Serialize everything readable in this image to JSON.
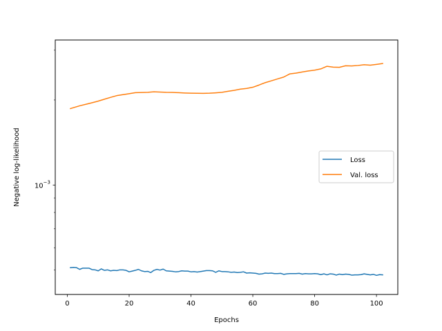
{
  "chart_data": {
    "type": "line",
    "title": "",
    "xlabel": "Epochs",
    "ylabel": "Negative log-likelihood",
    "xlim": [
      -3.9,
      106.9
    ],
    "ylim": [
      0.00041,
      0.00326
    ],
    "y_scale": "log",
    "x_ticks": [
      0,
      20,
      40,
      60,
      80,
      100
    ],
    "x_tick_labels": [
      "0",
      "20",
      "40",
      "60",
      "80",
      "100"
    ],
    "y_ticks": [
      0.001
    ],
    "y_tick_labels": {
      "base": "10",
      "exp": "−3"
    },
    "grid": false,
    "legend": {
      "position": "center-right"
    },
    "series": [
      {
        "name": "Loss",
        "color": "#1f77b4",
        "x": [
          1,
          2,
          3,
          4,
          5,
          6,
          7,
          8,
          9,
          10,
          11,
          12,
          13,
          14,
          15,
          16,
          17,
          18,
          19,
          20,
          21,
          22,
          23,
          24,
          25,
          26,
          27,
          28,
          29,
          30,
          31,
          32,
          33,
          34,
          35,
          36,
          37,
          38,
          39,
          40,
          41,
          42,
          43,
          44,
          45,
          46,
          47,
          48,
          49,
          50,
          51,
          52,
          53,
          54,
          55,
          56,
          57,
          58,
          59,
          60,
          61,
          62,
          63,
          64,
          65,
          66,
          67,
          68,
          69,
          70,
          71,
          72,
          73,
          74,
          75,
          76,
          77,
          78,
          79,
          80,
          81,
          82,
          83,
          84,
          85,
          86,
          87,
          88,
          89,
          90,
          91,
          92,
          93,
          94,
          95,
          96,
          97,
          98,
          99,
          100,
          101,
          102
        ],
        "y": [
          0.00051,
          0.000511,
          0.00051,
          0.000503,
          0.000508,
          0.000508,
          0.000508,
          0.000502,
          0.000501,
          0.000497,
          0.000505,
          0.000499,
          0.000501,
          0.000497,
          0.000499,
          0.000498,
          0.000501,
          0.000501,
          0.000499,
          0.000493,
          0.000496,
          0.000499,
          0.000503,
          0.000497,
          0.000494,
          0.000495,
          0.00049,
          0.000499,
          0.000503,
          0.0005,
          0.000504,
          0.000497,
          0.000496,
          0.000495,
          0.000493,
          0.000494,
          0.000497,
          0.000496,
          0.000496,
          0.000493,
          0.000494,
          0.000492,
          0.000494,
          0.000496,
          0.000498,
          0.000498,
          0.000497,
          0.000491,
          0.000497,
          0.000494,
          0.000494,
          0.000493,
          0.000491,
          0.000492,
          0.00049,
          0.000491,
          0.000493,
          0.000488,
          0.000489,
          0.000488,
          0.000487,
          0.000484,
          0.000485,
          0.000488,
          0.000487,
          0.000488,
          0.000486,
          0.000486,
          0.000487,
          0.000483,
          0.000485,
          0.000486,
          0.000486,
          0.000486,
          0.000487,
          0.000484,
          0.000486,
          0.000485,
          0.000485,
          0.000486,
          0.000485,
          0.000482,
          0.000485,
          0.000481,
          0.000485,
          0.000484,
          0.00048,
          0.000484,
          0.000482,
          0.000484,
          0.000483,
          0.00048,
          0.000481,
          0.000481,
          0.000482,
          0.000485,
          0.000483,
          0.000481,
          0.000483,
          0.000479,
          0.000482,
          0.000481
        ]
      },
      {
        "name": "Val. loss",
        "color": "#ff7f0e",
        "x": [
          1,
          4,
          8,
          10,
          12,
          14,
          16,
          18,
          20,
          22,
          24,
          26,
          28,
          30,
          32,
          34,
          36,
          38,
          40,
          42,
          44,
          46,
          48,
          50,
          52,
          54,
          56,
          58,
          60,
          62,
          64,
          66,
          68,
          70,
          72,
          74,
          76,
          78,
          80,
          82,
          84,
          86,
          88,
          90,
          92,
          94,
          96,
          98,
          100,
          102
        ],
        "y": [
          0.001864,
          0.001907,
          0.001955,
          0.001981,
          0.002012,
          0.002043,
          0.002072,
          0.002089,
          0.002105,
          0.002123,
          0.002126,
          0.002128,
          0.002137,
          0.002133,
          0.002128,
          0.002127,
          0.002122,
          0.002117,
          0.002114,
          0.002112,
          0.002111,
          0.002113,
          0.00212,
          0.002128,
          0.002146,
          0.002163,
          0.002185,
          0.002197,
          0.002218,
          0.002258,
          0.002303,
          0.002338,
          0.002374,
          0.00241,
          0.002474,
          0.00249,
          0.002512,
          0.002533,
          0.00255,
          0.002576,
          0.002632,
          0.002613,
          0.002609,
          0.002642,
          0.002638,
          0.002649,
          0.002664,
          0.002655,
          0.002672,
          0.002691
        ]
      }
    ]
  }
}
